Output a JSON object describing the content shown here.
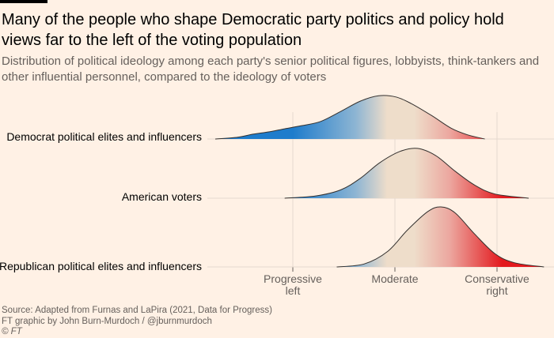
{
  "title": "Many of the people who shape Democratic party politics and policy hold views far to the left of the voting population",
  "subtitle": "Distribution of political ideology among each party's senior political figures, lobbyists, think-tankers and other influential personnel, compared to the ideology of voters",
  "footer": {
    "source": "Source: Adapted from Furnas and LaPira (2021, Data for Progress)",
    "credit": "FT graphic by John Burn-Murdoch / @jburnmurdoch",
    "copyright": "© FT"
  },
  "colors": {
    "left": "#1e7ccc",
    "mid": "#eeddca",
    "right": "#e3191e",
    "line": "#33302e",
    "grid": "#e6d9ce"
  },
  "chart_data": {
    "type": "area",
    "subtype": "ridgeline density",
    "xlabel": "",
    "ylabel": "",
    "xlim": [
      -1.8,
      1.5
    ],
    "ticks": [
      {
        "value": -1,
        "line1": "Progressive",
        "line2": "left"
      },
      {
        "value": 0,
        "line1": "Moderate",
        "line2": ""
      },
      {
        "value": 1,
        "line1": "Conservative",
        "line2": "right"
      }
    ],
    "series": [
      {
        "name": "Democrat political elites and influencers",
        "x": [
          -1.76,
          -1.54,
          -1.39,
          -1.23,
          -1.08,
          -0.92,
          -0.73,
          -0.53,
          -0.34,
          -0.16,
          0.01,
          0.16,
          0.36,
          0.55,
          0.71,
          0.88
        ],
        "density": [
          0,
          0.03,
          0.08,
          0.12,
          0.17,
          0.22,
          0.29,
          0.46,
          0.63,
          0.72,
          0.7,
          0.59,
          0.39,
          0.18,
          0.07,
          0
        ]
      },
      {
        "name": "American voters",
        "x": [
          -1.08,
          -0.77,
          -0.53,
          -0.34,
          -0.15,
          0.05,
          0.22,
          0.4,
          0.59,
          0.78,
          0.98,
          1.31
        ],
        "density": [
          0,
          0.04,
          0.14,
          0.33,
          0.59,
          0.78,
          0.83,
          0.71,
          0.45,
          0.22,
          0.07,
          0
        ]
      },
      {
        "name": "Republican political elites and influencers",
        "x": [
          -0.57,
          -0.3,
          -0.07,
          0.12,
          0.32,
          0.45,
          0.59,
          0.78,
          0.98,
          1.17,
          1.46
        ],
        "density": [
          0,
          0.05,
          0.26,
          0.61,
          0.92,
          1.0,
          0.9,
          0.55,
          0.22,
          0.07,
          0
        ]
      }
    ]
  }
}
